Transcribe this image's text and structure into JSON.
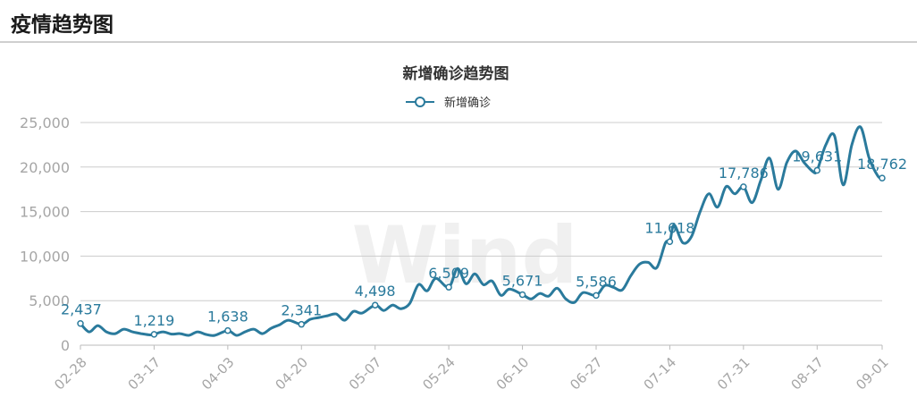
{
  "header": {
    "title": "疫情趋势图"
  },
  "watermark": "Wind",
  "chart_data": {
    "type": "line",
    "title": "新增确诊趋势图",
    "xlabel": "",
    "ylabel": "",
    "ylim": [
      0,
      25000
    ],
    "yticks": [
      "0",
      "5,000",
      "10,000",
      "15,000",
      "20,000",
      "25,000"
    ],
    "ytick_values": [
      0,
      5000,
      10000,
      15000,
      20000,
      25000
    ],
    "x_tick_labels": [
      "02-28",
      "03-17",
      "04-03",
      "04-20",
      "05-07",
      "05-24",
      "06-10",
      "06-27",
      "07-14",
      "07-31",
      "08-17",
      "09-01"
    ],
    "x_tick_days": [
      0,
      17,
      34,
      51,
      68,
      85,
      102,
      119,
      136,
      153,
      170,
      185
    ],
    "legend_position": "top-center",
    "grid": true,
    "line_color": "#2a7a9c",
    "series": [
      {
        "name": "新增确诊",
        "x": [
          0,
          2,
          4,
          6,
          8,
          10,
          12,
          14,
          16,
          17,
          19,
          21,
          23,
          25,
          27,
          29,
          31,
          34,
          36,
          38,
          40,
          42,
          44,
          46,
          48,
          51,
          53,
          55,
          57,
          59,
          61,
          63,
          65,
          68,
          70,
          72,
          74,
          76,
          78,
          80,
          82,
          85,
          87,
          89,
          91,
          93,
          95,
          97,
          99,
          102,
          104,
          106,
          108,
          110,
          112,
          114,
          116,
          119,
          121,
          123,
          125,
          127,
          129,
          131,
          133,
          135,
          136,
          137,
          139,
          141,
          143,
          145,
          147,
          149,
          151,
          153,
          155,
          157,
          159,
          161,
          163,
          165,
          167,
          169,
          170,
          172,
          174,
          176,
          178,
          180,
          182,
          184,
          185
        ],
        "values": [
          2437,
          1500,
          2200,
          1500,
          1300,
          1800,
          1500,
          1300,
          1150,
          1219,
          1500,
          1250,
          1300,
          1100,
          1500,
          1200,
          1100,
          1638,
          1100,
          1500,
          1800,
          1300,
          1900,
          2300,
          2800,
          2341,
          2900,
          3100,
          3300,
          3500,
          2800,
          3800,
          3600,
          4498,
          3900,
          4500,
          4100,
          4700,
          6800,
          6100,
          7500,
          6509,
          8600,
          6900,
          8000,
          6800,
          7200,
          5600,
          6300,
          5671,
          5200,
          5800,
          5500,
          6400,
          5200,
          4800,
          5900,
          5586,
          6700,
          6500,
          6200,
          7800,
          9100,
          9300,
          8700,
          11500,
          11618,
          13500,
          11500,
          12200,
          15000,
          17000,
          15500,
          17800,
          17000,
          17786,
          16000,
          18500,
          21000,
          17500,
          20500,
          21800,
          20500,
          19500,
          19631,
          22500,
          23500,
          18000,
          22500,
          24500,
          21000,
          19000,
          18762
        ],
        "labeled_points": [
          {
            "x": 0,
            "value": 2437,
            "label": "2,437"
          },
          {
            "x": 17,
            "value": 1219,
            "label": "1,219"
          },
          {
            "x": 34,
            "value": 1638,
            "label": "1,638"
          },
          {
            "x": 51,
            "value": 2341,
            "label": "2,341"
          },
          {
            "x": 68,
            "value": 4498,
            "label": "4,498"
          },
          {
            "x": 85,
            "value": 6509,
            "label": "6,509"
          },
          {
            "x": 102,
            "value": 5671,
            "label": "5,671"
          },
          {
            "x": 119,
            "value": 5586,
            "label": "5,586"
          },
          {
            "x": 136,
            "value": 11618,
            "label": "11,618"
          },
          {
            "x": 153,
            "value": 17786,
            "label": "17,786"
          },
          {
            "x": 170,
            "value": 19631,
            "label": "19,631"
          },
          {
            "x": 185,
            "value": 18762,
            "label": "18,762"
          }
        ]
      }
    ]
  }
}
